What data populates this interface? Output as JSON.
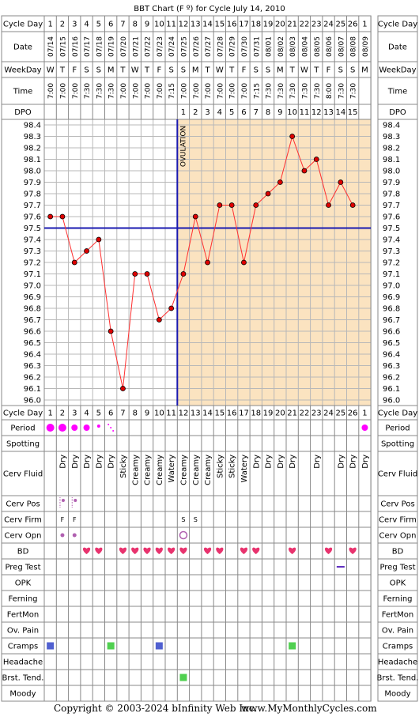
{
  "title": "BBT Chart (F º) for Cycle July 14, 2010",
  "labels": {
    "cycle_day": "Cycle Day",
    "date": "Date",
    "weekday": "WeekDay",
    "time": "Time",
    "dpo": "DPO",
    "ovulation": "OVULATION",
    "period": "Period",
    "spotting": "Spotting",
    "cerv_fluid": "Cerv Fluid",
    "cerv_pos": "Cerv Pos",
    "cerv_firm": "Cerv Firm",
    "cerv_opn": "Cerv Opn",
    "bd": "BD",
    "preg_test": "Preg Test",
    "opk": "OPK",
    "ferning": "Ferning",
    "fertmon": "FertMon",
    "ov_pain": "Ov. Pain",
    "cramps": "Cramps",
    "headache": "Headache",
    "brst_tend": "Brst. Tend.",
    "moody": "Moody"
  },
  "footer": {
    "copyright": "Copyright © 2003-2024 bInfinity Web Inc.",
    "site": "www.MyMonthlyCycles.com"
  },
  "colors": {
    "follicular_bg": "#ffffff",
    "luteal_bg": "#fbe3c0",
    "grid": "#b8b8b8",
    "line": "#ff3030",
    "point": "#dd0000",
    "coverline": "#1a1ab0",
    "ovulation_line": "#1a1ab0",
    "period": "#ff00ff",
    "heart": "#e8336e",
    "cervix": "#b060b0",
    "cramps_blue": "#5060d0",
    "cramps_green": "#50d050",
    "preg_test": "#6030c0",
    "header_bg": "#eeeeee"
  },
  "chart_data": {
    "type": "line",
    "cycle_days": [
      "1",
      "2",
      "3",
      "4",
      "5",
      "6",
      "7",
      "8",
      "9",
      "10",
      "11",
      "12",
      "13",
      "14",
      "15",
      "16",
      "17",
      "18",
      "19",
      "20",
      "21",
      "22",
      "23",
      "24",
      "25",
      "26",
      "1"
    ],
    "dates": [
      "07/14",
      "07/15",
      "07/16",
      "07/17",
      "07/18",
      "07/19",
      "07/20",
      "07/21",
      "07/22",
      "07/23",
      "07/24",
      "07/25",
      "07/26",
      "07/27",
      "07/28",
      "07/29",
      "07/30",
      "07/31",
      "08/01",
      "08/02",
      "08/03",
      "08/04",
      "08/05",
      "08/06",
      "08/07",
      "08/08",
      "08/09"
    ],
    "weekdays": [
      "W",
      "T",
      "F",
      "S",
      "S",
      "M",
      "T",
      "W",
      "T",
      "F",
      "S",
      "S",
      "M",
      "T",
      "W",
      "T",
      "F",
      "S",
      "S",
      "M",
      "T",
      "W",
      "T",
      "F",
      "S",
      "S",
      "M"
    ],
    "times": [
      "7:00",
      "7:00",
      "7:00",
      "7:30",
      "7:30",
      "7:30",
      "7:00",
      "7:00",
      "7:00",
      "7:00",
      "7:15",
      "7:00",
      "7:00",
      "7:00",
      "7:00",
      "7:00",
      "7:00",
      "7:15",
      "7:30",
      "7:30",
      "7:30",
      "7:30",
      "7:30",
      "8:00",
      "7:30",
      "7:30",
      ""
    ],
    "dpo": [
      "",
      "",
      "",
      "",
      "",
      "",
      "",
      "",
      "",
      "",
      "",
      "1",
      "2",
      "3",
      "4",
      "5",
      "6",
      "7",
      "8",
      "9",
      "10",
      "11",
      "12",
      "13",
      "14",
      "15",
      ""
    ],
    "temperatures": [
      97.6,
      97.6,
      97.2,
      97.3,
      97.4,
      96.6,
      96.1,
      97.1,
      97.1,
      96.7,
      96.8,
      97.1,
      97.6,
      97.2,
      97.7,
      97.7,
      97.2,
      97.7,
      97.8,
      97.9,
      98.3,
      98.0,
      98.1,
      97.7,
      97.9,
      97.7,
      null
    ],
    "y_ticks": [
      "98.4",
      "98.3",
      "98.2",
      "98.1",
      "98.0",
      "97.9",
      "97.8",
      "97.7",
      "97.6",
      "97.5",
      "97.4",
      "97.3",
      "97.2",
      "97.1",
      "97.0",
      "96.9",
      "96.8",
      "96.7",
      "96.6",
      "96.5",
      "96.4",
      "96.3",
      "96.2",
      "96.1",
      "96.0"
    ],
    "ylim": [
      96.0,
      98.4
    ],
    "coverline": 97.5,
    "ovulation_after_day_index": 10,
    "grid": true
  },
  "rows": {
    "period": [
      "heavy",
      "heavy",
      "medium",
      "medium",
      "light",
      "spot",
      "",
      "",
      "",
      "",
      "",
      "",
      "",
      "",
      "",
      "",
      "",
      "",
      "",
      "",
      "",
      "",
      "",
      "",
      "",
      "",
      "medium"
    ],
    "cerv_fluid": [
      "",
      "Dry",
      "Dry",
      "Dry",
      "Dry",
      "Dry",
      "Sticky",
      "Creamy",
      "Creamy",
      "Creamy",
      "Watery",
      "Creamy",
      "Creamy",
      "Creamy",
      "Sticky",
      "Sticky",
      "Watery",
      "Dry",
      "Dry",
      "Dry",
      "Dry",
      "",
      "Dry",
      "",
      "Dry",
      "Dry",
      "Dry"
    ],
    "cerv_pos": [
      "",
      "low",
      "low",
      "",
      "",
      "",
      "",
      "",
      "",
      "",
      "",
      "",
      "",
      "",
      "",
      "",
      "",
      "",
      "",
      "",
      "",
      "",
      "",
      "",
      "",
      "",
      ""
    ],
    "cerv_firm": [
      "",
      "F",
      "F",
      "",
      "",
      "",
      "",
      "",
      "",
      "",
      "",
      "S",
      "S",
      "",
      "",
      "",
      "",
      "",
      "",
      "",
      "",
      "",
      "",
      "",
      "",
      "",
      ""
    ],
    "cerv_opn": [
      "",
      "closed",
      "closed",
      "",
      "",
      "",
      "",
      "",
      "",
      "",
      "",
      "open",
      "",
      "",
      "",
      "",
      "",
      "",
      "",
      "",
      "",
      "",
      "",
      "",
      "",
      "",
      ""
    ],
    "bd": [
      "",
      "",
      "",
      "y",
      "y",
      "",
      "y",
      "y",
      "y",
      "y",
      "y",
      "y",
      "",
      "y",
      "y",
      "",
      "y",
      "y",
      "",
      "",
      "y",
      "",
      "",
      "y",
      "",
      "y",
      ""
    ],
    "preg_test": [
      "",
      "",
      "",
      "",
      "",
      "",
      "",
      "",
      "",
      "",
      "",
      "",
      "",
      "",
      "",
      "",
      "",
      "",
      "",
      "",
      "",
      "",
      "",
      "",
      "neg",
      "",
      ""
    ],
    "cramps": [
      "blue",
      "",
      "",
      "",
      "",
      "green",
      "",
      "",
      "",
      "blue",
      "",
      "",
      "",
      "",
      "",
      "",
      "",
      "",
      "",
      "",
      "green",
      "",
      "",
      "",
      "",
      "",
      ""
    ],
    "brst_tend": [
      "",
      "",
      "",
      "",
      "",
      "",
      "",
      "",
      "",
      "",
      "",
      "green",
      "",
      "",
      "",
      "",
      "",
      "",
      "",
      "",
      "",
      "",
      "",
      "",
      "",
      "",
      ""
    ]
  }
}
